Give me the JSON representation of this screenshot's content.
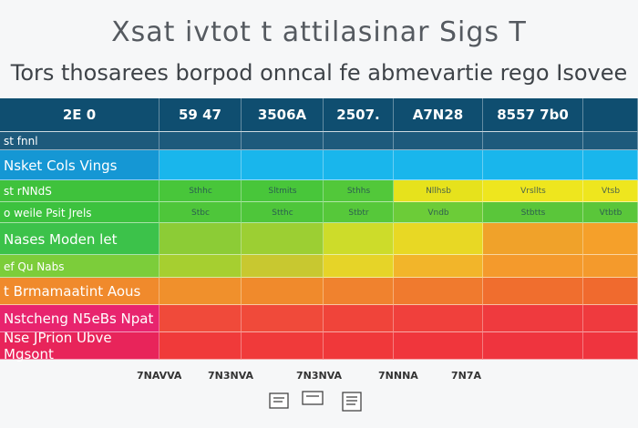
{
  "header": {
    "title": "Xsat ivtot t attilasinar Sigs T",
    "subtitle": "Tors thosarees borpod onncal fe abmevartie rego Isovee"
  },
  "table": {
    "columns": [
      "2E 0",
      "59 47",
      "3506A",
      "2507.",
      "A7N28",
      "8557 7b0"
    ],
    "header_color": "#0f4e70",
    "rows": [
      {
        "label": "st fnnl",
        "cells": [],
        "colors": [
          "#1d5a7c",
          "#1d5a7c",
          "#1d5a7c",
          "#1d5a7c",
          "#1d5a7c",
          "#1d5a7c",
          "#1d5a7c"
        ]
      },
      {
        "label": "Nsket Cols Vings",
        "cells": [],
        "colors": [
          "#1597d4",
          "#19b6ec",
          "#19b6ec",
          "#19b6ec",
          "#19b6ec",
          "#19b6ec",
          "#19b6ec"
        ]
      },
      {
        "label": "st rNNdS",
        "cells": [
          "Sthhc",
          "Sltmits",
          "Sthhs",
          "Nllhsb",
          "Vrsllts",
          "Vtsb"
        ],
        "colors": [
          "#3fc23c",
          "#48c63a",
          "#48c63a",
          "#52c83a",
          "#e6e21c",
          "#eee61e",
          "#eee61e"
        ]
      },
      {
        "label": "o weile Psit Jrels",
        "cells": [
          "Stbc",
          "Stthc",
          "Stbtr",
          "Vndb",
          "Stbtts",
          "Vtbtb"
        ],
        "colors": [
          "#3cc23e",
          "#4ec63a",
          "#4ec63a",
          "#56c83a",
          "#6ccc38",
          "#5ac63a",
          "#5ac63a"
        ]
      },
      {
        "label": "Nases Moden let",
        "cells": [],
        "colors": [
          "#3cc24a",
          "#8ccc36",
          "#9ccf33",
          "#cddc2a",
          "#e8d824",
          "#f0a22a",
          "#f5a02a"
        ]
      },
      {
        "label": "ef Qu Nabs",
        "cells": [],
        "colors": [
          "#7ccd3a",
          "#a6cf30",
          "#c8c830",
          "#e6d428",
          "#f2b52a",
          "#f49a2c",
          "#f49a2c"
        ]
      },
      {
        "label": "t Brmamaatint Aous",
        "cells": [],
        "colors": [
          "#f08a2c",
          "#f0902c",
          "#f08a2c",
          "#f0822e",
          "#f07a2e",
          "#f06e2e",
          "#f06a2e"
        ]
      },
      {
        "label": "Nstcheng N5eBs Npat",
        "cells": [],
        "colors": [
          "#e8246e",
          "#f04a3a",
          "#f04a3a",
          "#f0443a",
          "#f0403c",
          "#ef3a3e",
          "#ef3a3e"
        ]
      },
      {
        "label": "Nse JPrion Ubve Mgsont",
        "cells": [],
        "colors": [
          "#e8245a",
          "#f03a3a",
          "#f03a3a",
          "#f0383a",
          "#f0363c",
          "#ef343e",
          "#ef343e"
        ]
      }
    ]
  },
  "footer": {
    "labels": [
      "7NAVVA",
      "7N3NVA",
      "7N3NVA",
      "7NNNA",
      "7N7A"
    ]
  }
}
